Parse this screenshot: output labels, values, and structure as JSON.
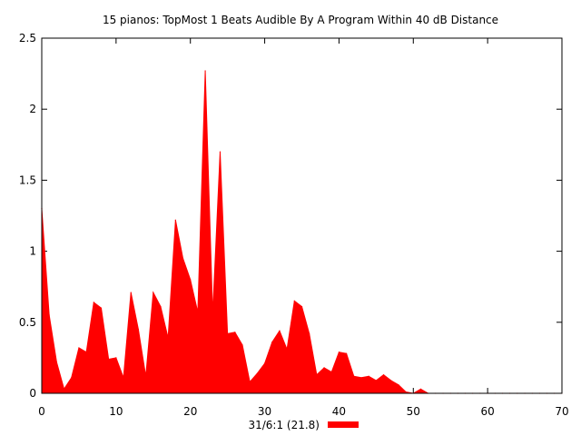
{
  "chart_data": {
    "type": "area",
    "title": "15 pianos: TopMost 1 Beats Audible By A Program Within 40 dB Distance",
    "xlabel": "",
    "ylabel": "",
    "xlim": [
      0,
      70
    ],
    "ylim": [
      0,
      2.5
    ],
    "x_ticks": [
      "0",
      "10",
      "20",
      "30",
      "40",
      "50",
      "60",
      "70"
    ],
    "y_ticks": [
      "0",
      "0.5",
      "1",
      "1.5",
      "2",
      "2.5"
    ],
    "grid": false,
    "legend_position": "bottom-center",
    "series": [
      {
        "name": "31/6:1 (21.8)",
        "color": "#ff0000",
        "x": [
          0,
          1,
          2,
          3,
          4,
          5,
          6,
          7,
          8,
          9,
          10,
          11,
          12,
          13,
          14,
          15,
          16,
          17,
          18,
          19,
          20,
          21,
          22,
          23,
          24,
          25,
          26,
          27,
          28,
          29,
          30,
          31,
          32,
          33,
          34,
          35,
          36,
          37,
          38,
          39,
          40,
          41,
          42,
          43,
          44,
          45,
          46,
          47,
          48,
          49,
          50,
          51,
          52,
          53,
          54,
          55,
          56,
          57,
          58,
          59,
          60,
          61,
          62,
          63,
          64,
          65,
          66,
          67,
          68,
          69,
          70
        ],
        "values": [
          1.3,
          0.55,
          0.22,
          0.03,
          0.11,
          0.32,
          0.29,
          0.64,
          0.6,
          0.24,
          0.25,
          0.11,
          0.71,
          0.45,
          0.12,
          0.71,
          0.61,
          0.39,
          1.22,
          0.95,
          0.8,
          0.57,
          2.27,
          0.56,
          1.7,
          0.42,
          0.43,
          0.34,
          0.08,
          0.14,
          0.21,
          0.36,
          0.44,
          0.31,
          0.65,
          0.61,
          0.42,
          0.13,
          0.18,
          0.15,
          0.29,
          0.28,
          0.12,
          0.11,
          0.12,
          0.09,
          0.13,
          0.09,
          0.06,
          0.01,
          0.0,
          0.03,
          0,
          0,
          0,
          0,
          0,
          0,
          0,
          0,
          0,
          0,
          0,
          0,
          0,
          0,
          0,
          0,
          0,
          0,
          0
        ]
      }
    ]
  }
}
